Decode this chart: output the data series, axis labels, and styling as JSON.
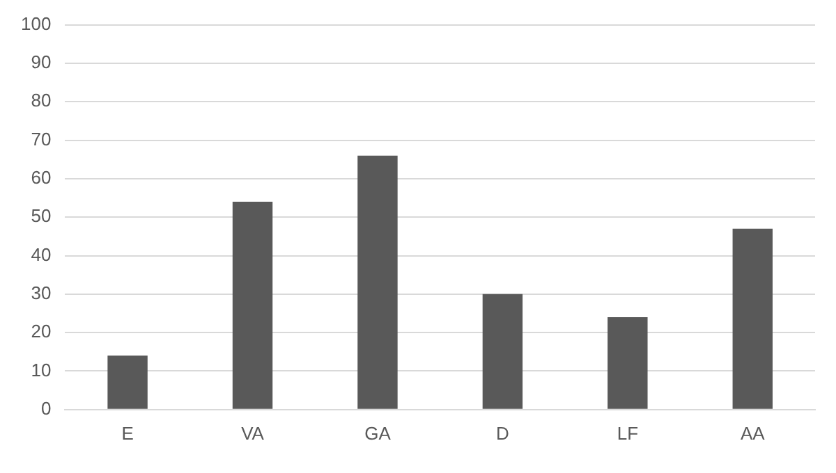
{
  "chart_data": {
    "type": "bar",
    "categories": [
      "E",
      "VA",
      "GA",
      "D",
      "LF",
      "AA"
    ],
    "values": [
      14,
      54,
      66,
      30,
      24,
      47
    ],
    "color": "#595959",
    "ylim": [
      0,
      100
    ],
    "yticks": [
      0,
      10,
      20,
      30,
      40,
      50,
      60,
      70,
      80,
      90,
      100
    ],
    "grid": "y",
    "legend": false
  }
}
